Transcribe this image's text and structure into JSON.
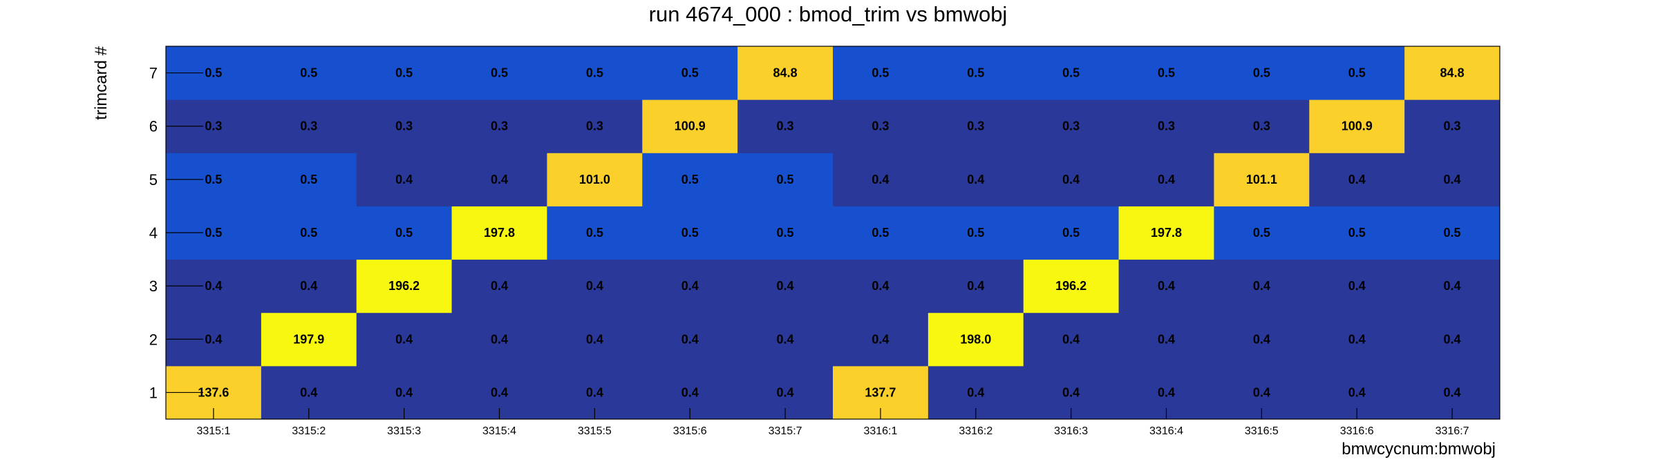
{
  "chart_data": {
    "type": "heatmap",
    "title": "run 4674_000 : bmod_trim vs bmwobj",
    "xlabel": "bmwcycnum:bmwobj",
    "ylabel": "trimcard #",
    "x_categories": [
      "3315:1",
      "3315:2",
      "3315:3",
      "3315:4",
      "3315:5",
      "3315:6",
      "3315:7",
      "3316:1",
      "3316:2",
      "3316:3",
      "3316:4",
      "3316:5",
      "3316:6",
      "3316:7"
    ],
    "y_categories": [
      "1",
      "2",
      "3",
      "4",
      "5",
      "6",
      "7"
    ],
    "values": [
      [
        "137.6",
        "0.4",
        "0.4",
        "0.4",
        "0.4",
        "0.4",
        "0.4",
        "137.7",
        "0.4",
        "0.4",
        "0.4",
        "0.4",
        "0.4",
        "0.4"
      ],
      [
        "0.4",
        "197.9",
        "0.4",
        "0.4",
        "0.4",
        "0.4",
        "0.4",
        "0.4",
        "198.0",
        "0.4",
        "0.4",
        "0.4",
        "0.4",
        "0.4"
      ],
      [
        "0.4",
        "0.4",
        "196.2",
        "0.4",
        "0.4",
        "0.4",
        "0.4",
        "0.4",
        "0.4",
        "196.2",
        "0.4",
        "0.4",
        "0.4",
        "0.4"
      ],
      [
        "0.5",
        "0.5",
        "0.5",
        "197.8",
        "0.5",
        "0.5",
        "0.5",
        "0.5",
        "0.5",
        "0.5",
        "197.8",
        "0.5",
        "0.5",
        "0.5"
      ],
      [
        "0.5",
        "0.5",
        "0.4",
        "0.4",
        "101.0",
        "0.5",
        "0.5",
        "0.4",
        "0.4",
        "0.4",
        "0.4",
        "101.1",
        "0.4",
        "0.4"
      ],
      [
        "0.3",
        "0.3",
        "0.3",
        "0.3",
        "0.3",
        "100.9",
        "0.3",
        "0.3",
        "0.3",
        "0.3",
        "0.3",
        "0.3",
        "100.9",
        "0.3"
      ],
      [
        "0.5",
        "0.5",
        "0.5",
        "0.5",
        "0.5",
        "0.5",
        "84.8",
        "0.5",
        "0.5",
        "0.5",
        "0.5",
        "0.5",
        "0.5",
        "84.8"
      ]
    ],
    "colors": {
      "low_dark": "#2a3899",
      "low_mid": "#1750cf",
      "mid_high": "#fbd02b",
      "high": "#f7f70f"
    }
  }
}
